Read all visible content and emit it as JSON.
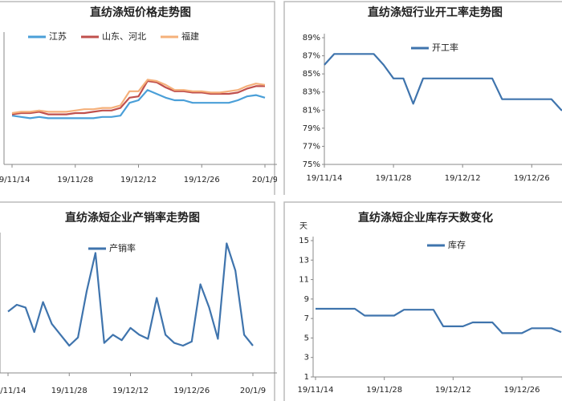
{
  "chart_data": [
    {
      "type": "line",
      "title": "直纺涤短价格走势图",
      "categories": [
        "19/11/14",
        null,
        null,
        null,
        null,
        null,
        null,
        "19/11/28",
        null,
        null,
        null,
        null,
        null,
        null,
        "19/12/12",
        null,
        null,
        null,
        null,
        null,
        null,
        "19/12/26",
        null,
        null,
        null,
        null,
        null,
        null,
        "20/1/9"
      ],
      "series": [
        {
          "name": "江苏",
          "color": "#4a9fd8",
          "values": [
            38,
            37,
            36,
            37,
            36,
            36,
            36,
            36,
            36,
            36,
            37,
            37,
            38,
            48,
            50,
            58,
            55,
            52,
            50,
            50,
            48,
            48,
            48,
            48,
            48,
            50,
            53,
            54,
            52
          ]
        },
        {
          "name": "山东、河北",
          "color": "#c0504d",
          "values": [
            39,
            40,
            40,
            41,
            39,
            39,
            39,
            40,
            40,
            41,
            42,
            42,
            44,
            52,
            53,
            65,
            64,
            60,
            57,
            57,
            56,
            56,
            55,
            55,
            55,
            56,
            59,
            61,
            61
          ]
        },
        {
          "name": "福建",
          "color": "#f5b07a",
          "values": [
            40,
            41,
            41,
            42,
            41,
            41,
            41,
            42,
            43,
            43,
            44,
            44,
            46,
            57,
            57,
            66,
            65,
            62,
            58,
            58,
            57,
            57,
            56,
            56,
            57,
            58,
            61,
            63,
            62
          ]
        }
      ],
      "ylim": [
        0,
        100
      ],
      "legend": "top"
    },
    {
      "type": "line",
      "title": "直纺涤短行业开工率走势图",
      "categories": [
        "19/11/14",
        null,
        null,
        null,
        null,
        null,
        null,
        "19/11/28",
        null,
        null,
        null,
        null,
        null,
        null,
        "19/12/12",
        null,
        null,
        null,
        null,
        null,
        null,
        "19/12/26",
        null,
        null,
        null,
        null
      ],
      "series": [
        {
          "name": "开工率",
          "color": "#3f74ad",
          "values": [
            86,
            87.2,
            87.2,
            87.2,
            87.2,
            87.2,
            86.0,
            84.5,
            84.5,
            81.7,
            84.5,
            84.5,
            84.5,
            84.5,
            84.5,
            84.5,
            84.5,
            84.5,
            82.2,
            82.2,
            82.2,
            82.2,
            82.2,
            82.2,
            81.0,
            81.0
          ]
        }
      ],
      "ylim": [
        75,
        89
      ],
      "yticks": [
        {
          "value": 75,
          "label": "75%"
        },
        {
          "value": 77,
          "label": "77%"
        },
        {
          "value": 79,
          "label": "79%"
        },
        {
          "value": 81,
          "label": "81%"
        },
        {
          "value": 83,
          "label": "83%"
        },
        {
          "value": 85,
          "label": "85%"
        },
        {
          "value": 87,
          "label": "87%"
        },
        {
          "value": 89,
          "label": "89%"
        }
      ],
      "legend": "top-right"
    },
    {
      "type": "line",
      "title": "直纺涤短企业产销率走势图",
      "categories": [
        "19/11/14",
        null,
        null,
        null,
        null,
        null,
        null,
        "19/11/28",
        null,
        null,
        null,
        null,
        null,
        null,
        "19/12/12",
        null,
        null,
        null,
        null,
        null,
        null,
        "19/12/26",
        null,
        null,
        null,
        null,
        null,
        null,
        "20/1/9"
      ],
      "series": [
        {
          "name": "产销率",
          "color": "#3f74ad",
          "values": [
            45,
            50,
            48,
            30,
            52,
            36,
            28,
            20,
            26,
            60,
            88,
            22,
            28,
            24,
            33,
            28,
            25,
            55,
            28,
            22,
            20,
            23,
            65,
            48,
            25,
            95,
            75,
            28,
            20
          ]
        }
      ],
      "ylim": [
        0,
        100
      ],
      "legend": "top"
    },
    {
      "type": "line",
      "title": "直纺涤短企业库存天数变化",
      "y_label": "天",
      "categories": [
        "19/11/14",
        null,
        null,
        null,
        null,
        null,
        null,
        "19/11/28",
        null,
        null,
        null,
        null,
        null,
        null,
        "19/12/12",
        null,
        null,
        null,
        null,
        null,
        null,
        "19/12/26",
        null,
        null,
        null,
        null
      ],
      "series": [
        {
          "name": "库存",
          "color": "#3f74ad",
          "values": [
            8,
            8,
            8,
            8,
            8,
            7.3,
            7.3,
            7.3,
            7.3,
            7.9,
            7.9,
            7.9,
            7.9,
            6.2,
            6.2,
            6.2,
            6.6,
            6.6,
            6.6,
            5.5,
            5.5,
            5.5,
            6.0,
            6.0,
            6.0,
            5.6
          ]
        }
      ],
      "ylim": [
        1,
        15
      ],
      "yticks": [
        1,
        3,
        5,
        7,
        9,
        11,
        13,
        15
      ],
      "legend": "top"
    }
  ]
}
